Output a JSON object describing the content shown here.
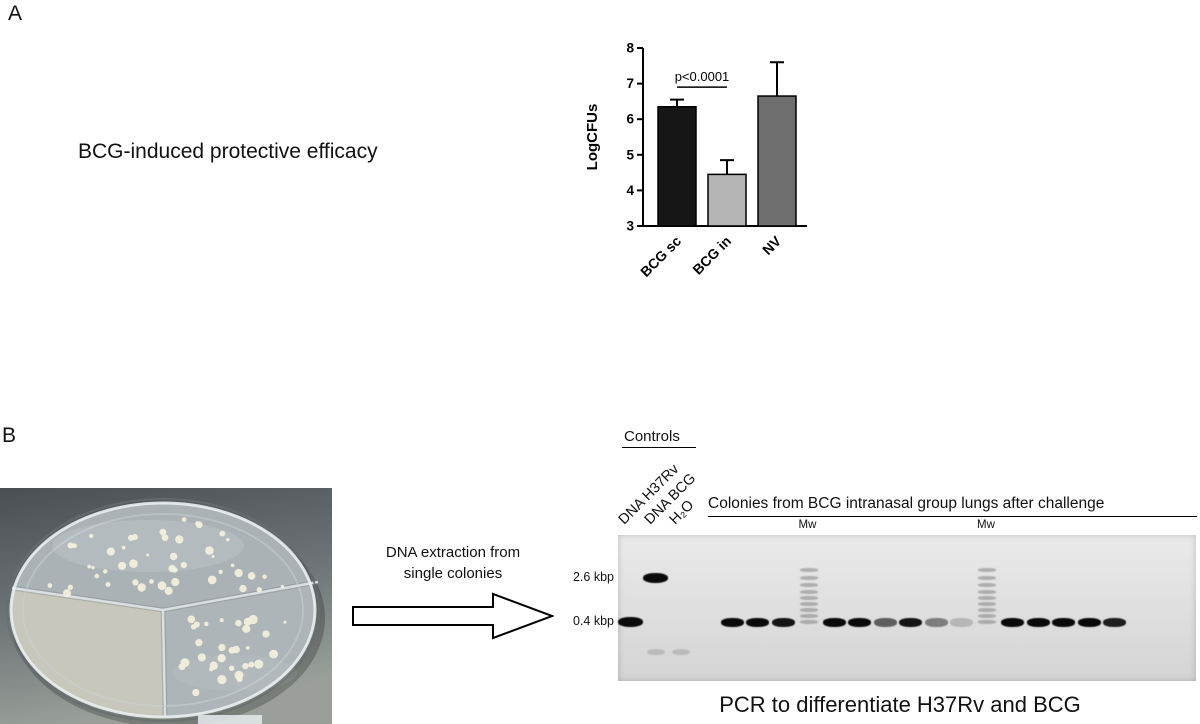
{
  "panel_a": {
    "label": "A",
    "title": "BCG-induced protective efficacy"
  },
  "chart_data": {
    "type": "bar",
    "categories": [
      "BCG sc",
      "BCG in",
      "NV"
    ],
    "values": [
      6.35,
      4.45,
      6.65
    ],
    "errors": [
      0.2,
      0.4,
      0.95
    ],
    "title": "",
    "xlabel": "",
    "ylabel": "LogCFUs",
    "ylim": [
      3,
      8
    ],
    "yticks": [
      3,
      4,
      5,
      6,
      7,
      8
    ],
    "bar_colors": [
      "#161616",
      "#b5b5b5",
      "#6e6e6e"
    ],
    "bar_edge_color": "#000000",
    "grid": false,
    "legend": null,
    "significance": {
      "label": "p<0.0001",
      "between": [
        0,
        1
      ],
      "line_y": 6.9
    }
  },
  "panel_b": {
    "label": "B",
    "arrow_label": "DNA extraction from\nsingle colonies",
    "caption": "PCR to differentiate H37Rv and BCG",
    "petri_dish": {
      "description": "tri-sector agar plate with white bacterial colonies",
      "colony_color": "#f2eedb"
    },
    "gel": {
      "controls_label": "Controls",
      "colonies_label": "Colonies from BCG intranasal group lungs after challenge",
      "mw_label": "Mw",
      "marker_26": "2.6 kbp",
      "marker_04": "0.4 kbp",
      "control_lanes": [
        {
          "slot": 0,
          "label": "DNA H37Rv",
          "band_kbp": 0.4,
          "intensity": 1
        },
        {
          "slot": 1,
          "label": "DNA BCG",
          "band_kbp": 2.6,
          "intensity": 1,
          "dimer": true
        },
        {
          "slot": 2,
          "label": "H₂O",
          "band_kbp": null,
          "intensity": 0,
          "dimer": true
        }
      ],
      "lanes": [
        {
          "slot": 4,
          "kind": "sample",
          "band_kbp": 0.4,
          "intensity": 1
        },
        {
          "slot": 5,
          "kind": "sample",
          "band_kbp": 0.4,
          "intensity": 1
        },
        {
          "slot": 6,
          "kind": "sample",
          "band_kbp": 0.4,
          "intensity": 0.95
        },
        {
          "slot": 7,
          "kind": "ladder"
        },
        {
          "slot": 8,
          "kind": "sample",
          "band_kbp": 0.4,
          "intensity": 1
        },
        {
          "slot": 9,
          "kind": "sample",
          "band_kbp": 0.4,
          "intensity": 1
        },
        {
          "slot": 10,
          "kind": "sample",
          "band_kbp": 0.4,
          "intensity": 0.6
        },
        {
          "slot": 11,
          "kind": "sample",
          "band_kbp": 0.4,
          "intensity": 0.95
        },
        {
          "slot": 12,
          "kind": "sample",
          "band_kbp": 0.4,
          "intensity": 0.45
        },
        {
          "slot": 13,
          "kind": "sample",
          "band_kbp": 0.4,
          "intensity": 0.18
        },
        {
          "slot": 14,
          "kind": "ladder"
        },
        {
          "slot": 15,
          "kind": "sample",
          "band_kbp": 0.4,
          "intensity": 1
        },
        {
          "slot": 16,
          "kind": "sample",
          "band_kbp": 0.4,
          "intensity": 1
        },
        {
          "slot": 17,
          "kind": "sample",
          "band_kbp": 0.4,
          "intensity": 1
        },
        {
          "slot": 18,
          "kind": "sample",
          "band_kbp": 0.4,
          "intensity": 1
        },
        {
          "slot": 19,
          "kind": "sample",
          "band_kbp": 0.4,
          "intensity": 0.9
        }
      ]
    }
  }
}
